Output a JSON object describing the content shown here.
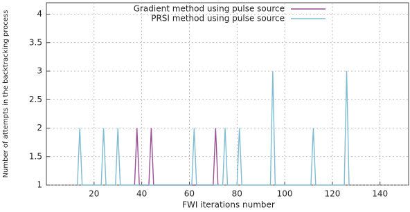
{
  "chart_data": {
    "type": "line",
    "xlabel": "FWI iterations number",
    "ylabel": "Number of attempts in the backtracking process",
    "xlim": [
      0,
      152
    ],
    "xticks": [
      20,
      40,
      60,
      80,
      100,
      120,
      140
    ],
    "ylim": [
      1,
      4.2
    ],
    "yticks": [
      1,
      1.5,
      2,
      2.5,
      3,
      3.5,
      4
    ],
    "grid": true,
    "legend": "top-right",
    "series": [
      {
        "name": "Gradient method using pulse source",
        "color": "#9b4f96",
        "x": [
          37,
          38,
          39,
          43,
          44,
          45,
          70,
          71,
          72
        ],
        "values": [
          1,
          2,
          1,
          1,
          2,
          1,
          1,
          2,
          1
        ]
      },
      {
        "name": "PRSI method using pulse source",
        "color": "#7fbcd2",
        "x": [
          13,
          14,
          15,
          23,
          24,
          25,
          29,
          30,
          31,
          61,
          62,
          63,
          74,
          75,
          76,
          80,
          81,
          82,
          94,
          95,
          96,
          111,
          112,
          113,
          125,
          126,
          127
        ],
        "values": [
          1,
          2,
          1,
          1,
          2,
          1,
          1,
          2,
          1,
          1,
          2,
          1,
          1,
          2,
          1,
          1,
          2,
          1,
          1,
          3,
          1,
          1,
          2,
          1,
          1,
          3,
          1
        ]
      }
    ]
  }
}
